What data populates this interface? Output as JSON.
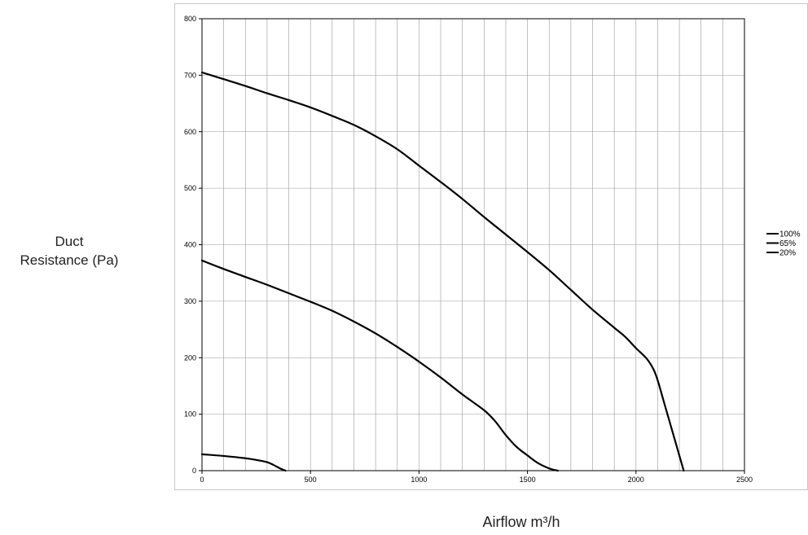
{
  "chart_data": {
    "type": "line",
    "xlabel": "Airflow m³/h",
    "ylabel_lines": [
      "Duct",
      "Resistance (Pa)"
    ],
    "xlim": [
      0,
      2500
    ],
    "ylim": [
      0,
      800
    ],
    "x_ticks": [
      0,
      500,
      1000,
      1500,
      2000,
      2500
    ],
    "y_ticks": [
      0,
      100,
      200,
      300,
      400,
      500,
      600,
      700,
      800
    ],
    "x_minor_step": 100,
    "grid": true,
    "legend_position": "right",
    "series": [
      {
        "name": "100%",
        "color": "#000000",
        "points": [
          [
            0,
            705
          ],
          [
            100,
            693
          ],
          [
            200,
            681
          ],
          [
            300,
            668
          ],
          [
            400,
            656
          ],
          [
            500,
            643
          ],
          [
            600,
            628
          ],
          [
            700,
            612
          ],
          [
            800,
            592
          ],
          [
            900,
            569
          ],
          [
            1000,
            540
          ],
          [
            1100,
            511
          ],
          [
            1200,
            481
          ],
          [
            1300,
            449
          ],
          [
            1400,
            418
          ],
          [
            1500,
            387
          ],
          [
            1600,
            355
          ],
          [
            1700,
            320
          ],
          [
            1800,
            285
          ],
          [
            1900,
            253
          ],
          [
            1950,
            237
          ],
          [
            2000,
            217
          ],
          [
            2050,
            198
          ],
          [
            2080,
            180
          ],
          [
            2100,
            160
          ],
          [
            2130,
            120
          ],
          [
            2160,
            80
          ],
          [
            2190,
            40
          ],
          [
            2220,
            0
          ]
        ]
      },
      {
        "name": "65%",
        "color": "#000000",
        "points": [
          [
            0,
            372
          ],
          [
            100,
            357
          ],
          [
            200,
            343
          ],
          [
            300,
            329
          ],
          [
            400,
            314
          ],
          [
            500,
            299
          ],
          [
            600,
            283
          ],
          [
            700,
            264
          ],
          [
            800,
            243
          ],
          [
            900,
            219
          ],
          [
            1000,
            193
          ],
          [
            1100,
            165
          ],
          [
            1200,
            135
          ],
          [
            1300,
            107
          ],
          [
            1350,
            88
          ],
          [
            1400,
            63
          ],
          [
            1450,
            42
          ],
          [
            1500,
            27
          ],
          [
            1550,
            13
          ],
          [
            1600,
            4
          ],
          [
            1640,
            0
          ]
        ]
      },
      {
        "name": "20%",
        "color": "#000000",
        "points": [
          [
            0,
            29
          ],
          [
            100,
            26
          ],
          [
            200,
            22
          ],
          [
            250,
            19
          ],
          [
            300,
            15
          ],
          [
            330,
            10
          ],
          [
            360,
            4
          ],
          [
            385,
            0
          ]
        ]
      }
    ]
  }
}
